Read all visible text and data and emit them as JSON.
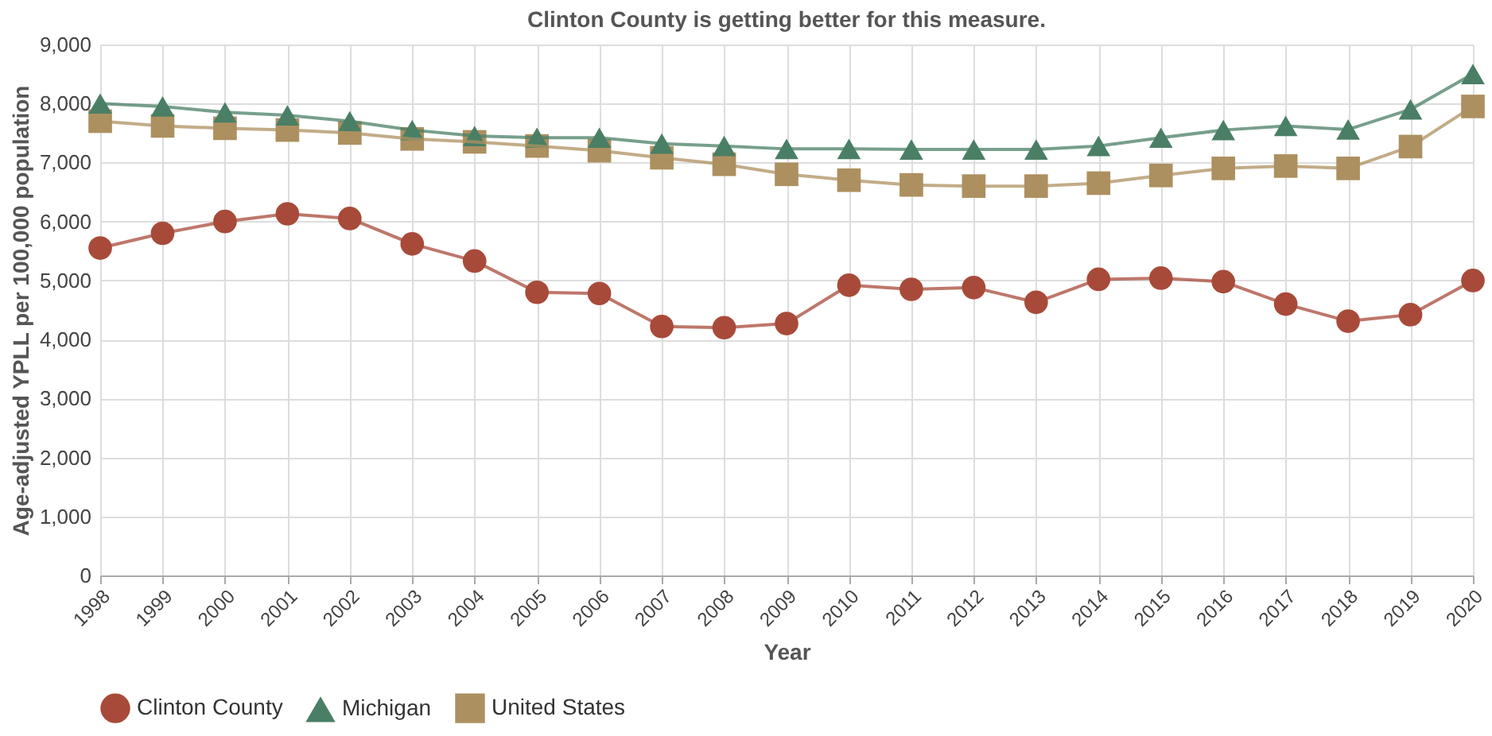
{
  "chart_data": {
    "type": "line",
    "title": "Clinton County is getting better for this measure.",
    "xlabel": "Year",
    "ylabel": "Age-adjusted YPLL per 100,000 population",
    "categories": [
      "1998",
      "1999",
      "2000",
      "2001",
      "2002",
      "2003",
      "2004",
      "2005",
      "2006",
      "2007",
      "2008",
      "2009",
      "2010",
      "2011",
      "2012",
      "2013",
      "2014",
      "2015",
      "2016",
      "2017",
      "2018",
      "2019",
      "2020"
    ],
    "series": [
      {
        "name": "Clinton County",
        "color": "#a84a3a",
        "marker": "circle",
        "values": [
          5550,
          5800,
          6000,
          6130,
          6050,
          5620,
          5330,
          4800,
          4780,
          4220,
          4200,
          4270,
          4920,
          4850,
          4880,
          4630,
          5020,
          5040,
          4980,
          4600,
          4310,
          4420,
          5000
        ]
      },
      {
        "name": "Michigan",
        "color": "#4a7f65",
        "marker": "triangle",
        "values": [
          8000,
          7950,
          7850,
          7800,
          7700,
          7550,
          7450,
          7420,
          7420,
          7320,
          7280,
          7230,
          7230,
          7220,
          7220,
          7220,
          7280,
          7420,
          7550,
          7620,
          7560,
          7900,
          8500
        ]
      },
      {
        "name": "United States",
        "color": "#ad9060",
        "marker": "square",
        "values": [
          7700,
          7620,
          7580,
          7550,
          7500,
          7400,
          7350,
          7280,
          7200,
          7080,
          6970,
          6800,
          6700,
          6620,
          6600,
          6600,
          6650,
          6780,
          6900,
          6940,
          6900,
          7270,
          7950
        ]
      }
    ],
    "ylim": [
      0,
      9000
    ],
    "yticks": [
      0,
      {
        "value": 1000,
        "label": "1,000"
      },
      {
        "value": 2000,
        "label": "2,000"
      },
      {
        "value": 3000,
        "label": "3,000"
      },
      {
        "value": 4000,
        "label": "4,000"
      },
      {
        "value": 5000,
        "label": "5,000"
      },
      {
        "value": 6000,
        "label": "6,000"
      },
      {
        "value": 7000,
        "label": "7,000"
      },
      {
        "value": 8000,
        "label": "8,000"
      },
      {
        "value": 9000,
        "label": "9,000"
      }
    ],
    "grid": true,
    "legend": "bottom"
  }
}
